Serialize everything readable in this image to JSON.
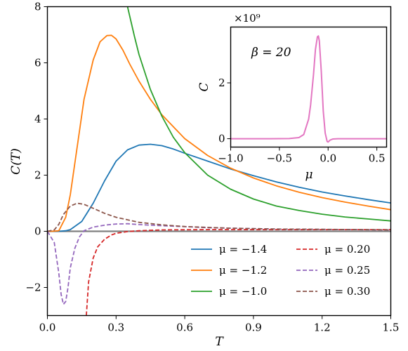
{
  "chart_data": [
    {
      "type": "line",
      "title": "",
      "xlabel": "T",
      "ylabel": "C(T)",
      "xlim": [
        0.0,
        1.5
      ],
      "ylim": [
        -3.0,
        8.0
      ],
      "x_ticks": [
        "0.0",
        "0.3",
        "0.6",
        "0.9",
        "1.2",
        "1.5"
      ],
      "y_ticks": [
        "−2",
        "0",
        "2",
        "4",
        "6",
        "8"
      ],
      "legend_position": "lower-right",
      "grid": false,
      "series": [
        {
          "name": "μ = −1.4",
          "color": "#1f77b4",
          "style": "solid",
          "x": [
            0.0,
            0.05,
            0.08,
            0.1,
            0.15,
            0.2,
            0.25,
            0.3,
            0.35,
            0.4,
            0.45,
            0.5,
            0.55,
            0.6,
            0.7,
            0.8,
            0.9,
            1.0,
            1.1,
            1.2,
            1.3,
            1.4,
            1.5
          ],
          "y": [
            0.0,
            0.0,
            0.02,
            0.06,
            0.35,
            1.0,
            1.8,
            2.5,
            2.9,
            3.07,
            3.1,
            3.05,
            2.93,
            2.78,
            2.5,
            2.22,
            1.98,
            1.76,
            1.57,
            1.4,
            1.26,
            1.13,
            1.01
          ]
        },
        {
          "name": "μ = −1.2",
          "color": "#ff7f0e",
          "style": "solid",
          "x": [
            0.0,
            0.02,
            0.05,
            0.08,
            0.1,
            0.13,
            0.16,
            0.2,
            0.23,
            0.26,
            0.28,
            0.3,
            0.33,
            0.36,
            0.4,
            0.45,
            0.5,
            0.6,
            0.7,
            0.8,
            0.9,
            1.0,
            1.1,
            1.2,
            1.3,
            1.4,
            1.5
          ],
          "y": [
            0.0,
            0.0,
            0.02,
            0.5,
            1.3,
            3.0,
            4.7,
            6.1,
            6.75,
            6.97,
            6.98,
            6.85,
            6.45,
            5.95,
            5.35,
            4.7,
            4.15,
            3.3,
            2.7,
            2.25,
            1.9,
            1.62,
            1.39,
            1.2,
            1.04,
            0.9,
            0.77
          ]
        },
        {
          "name": "μ = −1.0",
          "color": "#2ca02c",
          "style": "solid",
          "x": [
            0.35,
            0.38,
            0.4,
            0.45,
            0.5,
            0.55,
            0.6,
            0.7,
            0.8,
            0.9,
            1.0,
            1.1,
            1.2,
            1.3,
            1.4,
            1.5
          ],
          "y": [
            8.0,
            6.95,
            6.3,
            5.05,
            4.1,
            3.35,
            2.8,
            2.0,
            1.5,
            1.15,
            0.9,
            0.74,
            0.61,
            0.51,
            0.44,
            0.37
          ]
        },
        {
          "name": "μ = 0.20",
          "color": "#d62728",
          "style": "dashed",
          "x": [
            0.17,
            0.18,
            0.2,
            0.22,
            0.25,
            0.28,
            0.3,
            0.35,
            0.4,
            0.5,
            0.7,
            1.0,
            1.5
          ],
          "y": [
            -3.0,
            -1.8,
            -0.95,
            -0.55,
            -0.28,
            -0.13,
            -0.07,
            -0.01,
            0.02,
            0.05,
            0.06,
            0.06,
            0.06
          ]
        },
        {
          "name": "μ = 0.25",
          "color": "#9467bd",
          "style": "dashed",
          "x": [
            0.0,
            0.03,
            0.05,
            0.06,
            0.07,
            0.08,
            0.09,
            0.1,
            0.12,
            0.14,
            0.16,
            0.2,
            0.25,
            0.3,
            0.35,
            0.4,
            0.5,
            0.7,
            1.0,
            1.5
          ],
          "y": [
            0.0,
            -0.4,
            -1.5,
            -2.25,
            -2.6,
            -2.5,
            -2.0,
            -1.3,
            -0.6,
            -0.2,
            0.02,
            0.15,
            0.22,
            0.26,
            0.27,
            0.24,
            0.2,
            0.13,
            0.08,
            0.05
          ]
        },
        {
          "name": "μ = 0.30",
          "color": "#8c564b",
          "style": "dashed",
          "x": [
            0.0,
            0.03,
            0.05,
            0.07,
            0.1,
            0.13,
            0.16,
            0.2,
            0.25,
            0.3,
            0.4,
            0.5,
            0.6,
            0.8,
            1.0,
            1.2,
            1.5
          ],
          "y": [
            0.0,
            0.05,
            0.25,
            0.6,
            0.9,
            1.0,
            0.96,
            0.82,
            0.64,
            0.5,
            0.32,
            0.23,
            0.17,
            0.11,
            0.08,
            0.07,
            0.05
          ]
        }
      ],
      "reference_line": {
        "y": 0,
        "color": "#808080"
      }
    },
    {
      "type": "line",
      "title": "",
      "annotation": "β = 20",
      "scale_label": "×10⁹",
      "xlabel": "μ",
      "ylabel": "C",
      "xlim": [
        -1.0,
        0.6
      ],
      "ylim": [
        -0.3,
        4.0
      ],
      "x_ticks": [
        "−1.0",
        "−0.5",
        "0.0",
        "0.5"
      ],
      "y_ticks": [
        "0",
        "2"
      ],
      "series": [
        {
          "color": "#e377c2",
          "style": "solid",
          "x": [
            -1.0,
            -0.6,
            -0.4,
            -0.3,
            -0.25,
            -0.2,
            -0.18,
            -0.15,
            -0.13,
            -0.11,
            -0.1,
            -0.09,
            -0.07,
            -0.05,
            -0.03,
            -0.01,
            0.0,
            0.02,
            0.05,
            0.1,
            0.2,
            0.6
          ],
          "y": [
            0.0,
            0.0,
            0.005,
            0.04,
            0.15,
            0.7,
            1.2,
            2.3,
            3.2,
            3.65,
            3.68,
            3.5,
            2.4,
            1.0,
            0.2,
            -0.1,
            -0.12,
            -0.05,
            -0.01,
            0.0,
            0.0,
            0.0
          ]
        }
      ]
    }
  ]
}
